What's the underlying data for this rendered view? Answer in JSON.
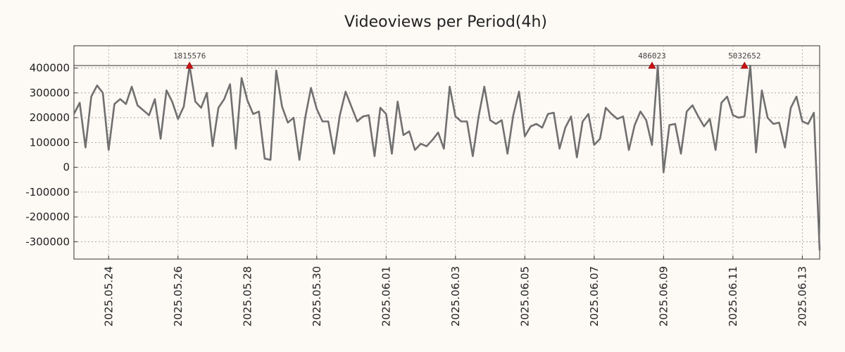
{
  "chart_data": {
    "type": "line",
    "title": "Videoviews per Period(4h)",
    "xlabel": "",
    "ylabel": "",
    "ylim": [
      -370000,
      490000
    ],
    "yticks": [
      400000,
      300000,
      200000,
      100000,
      0,
      -100000,
      -200000,
      -300000
    ],
    "ytick_labels": [
      "400000",
      "300000",
      "200000",
      "100000",
      "0",
      "-100000",
      "-200000",
      "-300000"
    ],
    "x_start": "2025.05.23 00:00",
    "x_range_days": [
      0,
      21.5
    ],
    "xticks": [
      1,
      3,
      5,
      7,
      9,
      11,
      13,
      15,
      17,
      19,
      21
    ],
    "xtick_labels": [
      "2025.05.24",
      "2025.05.26",
      "2025.05.28",
      "2025.05.30",
      "2025.06.01",
      "2025.06.03",
      "2025.06.05",
      "2025.06.07",
      "2025.06.09",
      "2025.06.11",
      "2025.06.13"
    ],
    "reference_line": 410000,
    "grid": true,
    "series": [
      {
        "name": "Videoviews",
        "x": [
          0,
          0.167,
          0.333,
          0.5,
          0.667,
          0.833,
          1,
          1.167,
          1.333,
          1.5,
          1.667,
          1.833,
          2,
          2.167,
          2.333,
          2.5,
          2.667,
          2.833,
          3,
          3.167,
          3.333,
          3.5,
          3.667,
          3.833,
          4,
          4.167,
          4.333,
          4.5,
          4.667,
          4.833,
          5,
          5.167,
          5.333,
          5.5,
          5.667,
          5.833,
          6,
          6.167,
          6.333,
          6.5,
          6.667,
          6.833,
          7,
          7.167,
          7.333,
          7.5,
          7.667,
          7.833,
          8,
          8.167,
          8.333,
          8.5,
          8.667,
          8.833,
          9,
          9.167,
          9.333,
          9.5,
          9.667,
          9.833,
          10,
          10.167,
          10.333,
          10.5,
          10.667,
          10.833,
          11,
          11.167,
          11.333,
          11.5,
          11.667,
          11.833,
          12,
          12.167,
          12.333,
          12.5,
          12.667,
          12.833,
          13,
          13.167,
          13.333,
          13.5,
          13.667,
          13.833,
          14,
          14.167,
          14.333,
          14.5,
          14.667,
          14.833,
          15,
          15.167,
          15.333,
          15.5,
          15.667,
          15.833,
          16,
          16.167,
          16.333,
          16.5,
          16.667,
          16.833,
          17,
          17.167,
          17.333,
          17.5,
          17.667,
          17.833,
          18,
          18.167,
          18.333,
          18.5,
          18.667,
          18.833,
          19,
          19.167,
          19.333,
          19.5,
          19.667,
          19.833,
          20,
          20.167,
          20.333,
          20.5,
          20.667,
          20.833,
          21,
          21.167,
          21.333,
          21.5
        ],
        "values": [
          215000,
          260000,
          80000,
          285000,
          330000,
          300000,
          70000,
          255000,
          275000,
          255000,
          325000,
          250000,
          230000,
          210000,
          275000,
          115000,
          310000,
          265000,
          195000,
          245000,
          410000,
          265000,
          240000,
          300000,
          85000,
          240000,
          275000,
          335000,
          75000,
          360000,
          270000,
          215000,
          225000,
          35000,
          30000,
          390000,
          245000,
          180000,
          200000,
          30000,
          200000,
          320000,
          235000,
          185000,
          185000,
          55000,
          210000,
          305000,
          245000,
          185000,
          205000,
          210000,
          45000,
          240000,
          215000,
          55000,
          265000,
          130000,
          145000,
          70000,
          95000,
          85000,
          110000,
          140000,
          75000,
          325000,
          205000,
          185000,
          185000,
          45000,
          205000,
          325000,
          190000,
          175000,
          190000,
          55000,
          210000,
          305000,
          125000,
          165000,
          175000,
          160000,
          215000,
          220000,
          75000,
          160000,
          205000,
          40000,
          185000,
          215000,
          90000,
          115000,
          240000,
          215000,
          195000,
          205000,
          70000,
          170000,
          225000,
          190000,
          90000,
          410000,
          -20000,
          170000,
          175000,
          55000,
          225000,
          250000,
          205000,
          165000,
          195000,
          70000,
          260000,
          285000,
          210000,
          200000,
          205000,
          410000,
          60000,
          310000,
          200000,
          175000,
          180000,
          80000,
          240000,
          285000,
          185000,
          175000,
          220000,
          -335000
        ]
      }
    ],
    "peaks": [
      {
        "x": 3.333,
        "value": 410000,
        "label": "1815576"
      },
      {
        "x": 16.667,
        "value": 410000,
        "label": "486023"
      },
      {
        "x": 19.333,
        "value": 410000,
        "label": "5032652"
      }
    ],
    "colors": {
      "line": "#707070",
      "peak_marker": "#cc1111",
      "reference_line": "#333333",
      "background": "#fdf9f5"
    }
  }
}
